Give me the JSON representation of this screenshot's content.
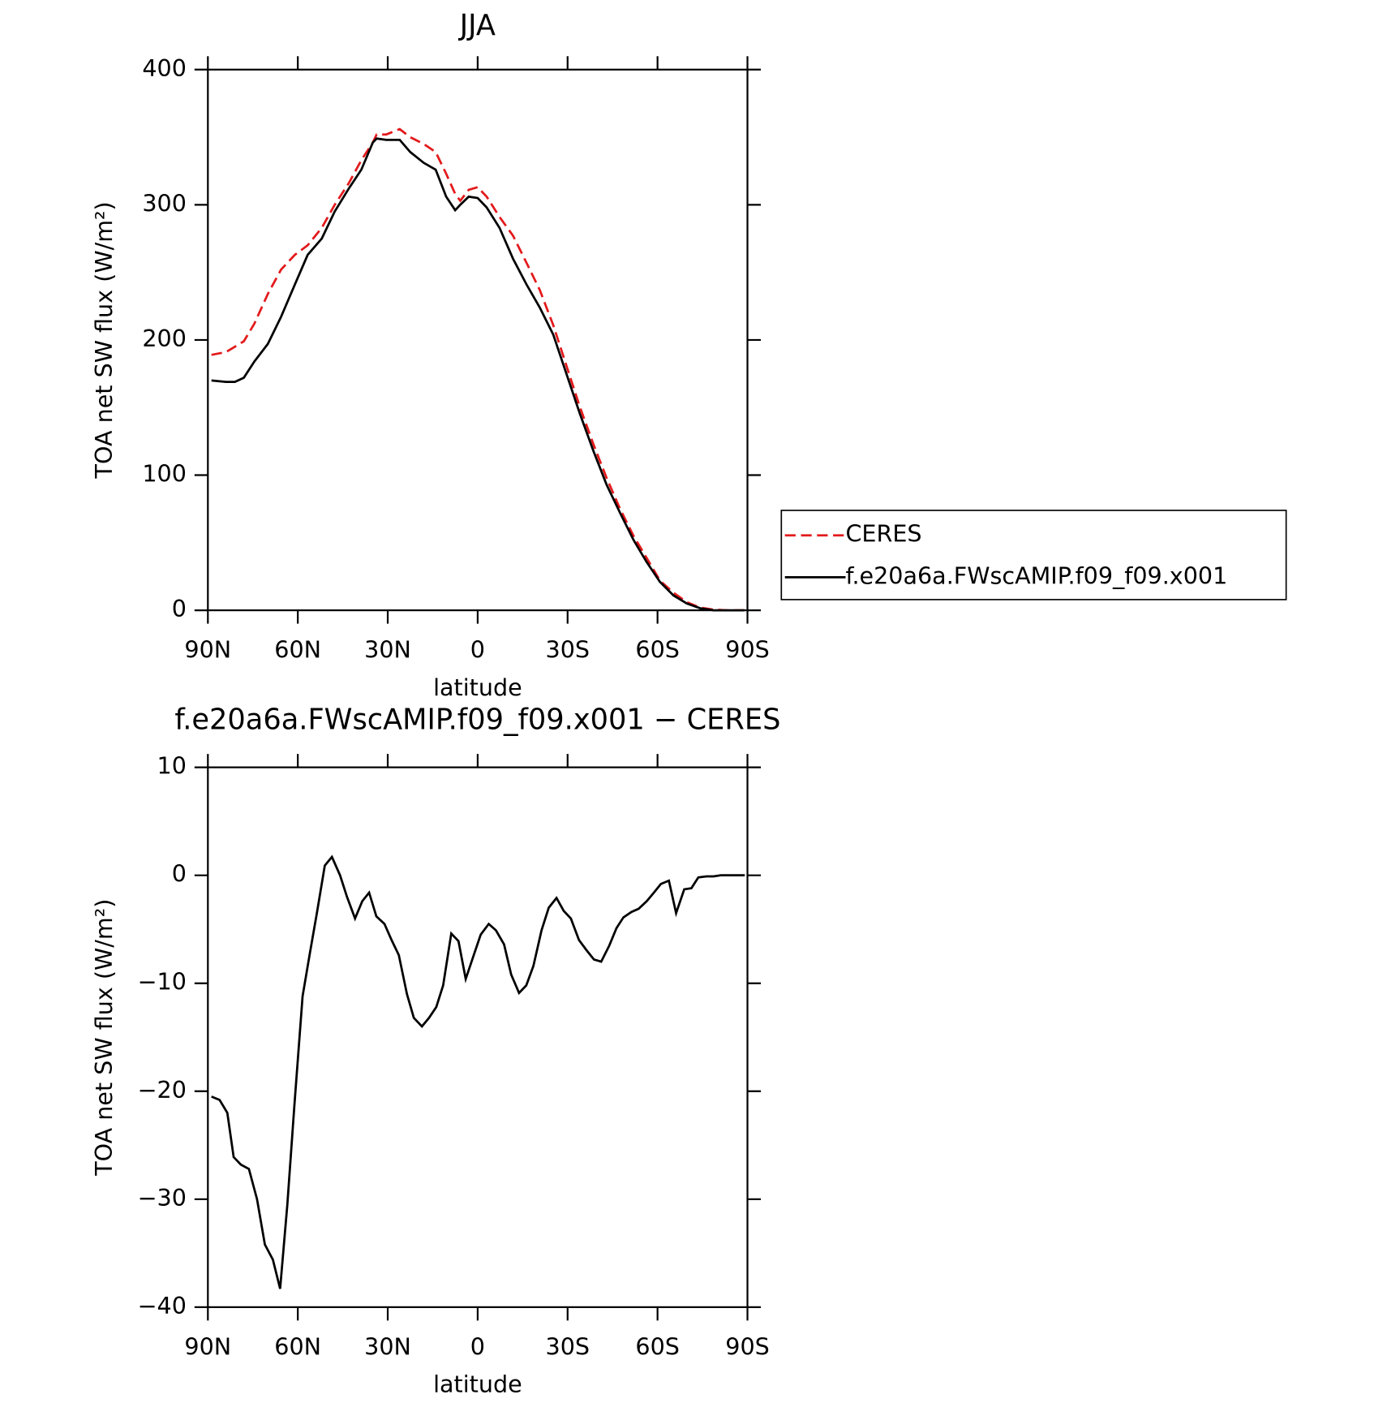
{
  "chart_data": [
    {
      "type": "line",
      "title": "JJA",
      "xlabel": "latitude",
      "ylabel": "TOA net SW flux (W/m²)",
      "x": [
        88.8,
        84,
        81,
        78,
        74.5,
        70,
        65.6,
        61,
        56.7,
        52,
        47.7,
        43,
        38.8,
        35,
        33.7,
        30.5,
        26,
        22.5,
        18,
        14,
        10.5,
        7.5,
        5.8,
        3,
        0,
        -3,
        -7.3,
        -11.8,
        -16.3,
        -20.7,
        -25.2,
        -29.6,
        -34,
        -38.6,
        -43,
        -47.5,
        -52,
        -56.3,
        -60.8,
        -65.3,
        -69.8,
        -74.2,
        -78.7,
        -83,
        -89
      ],
      "series": [
        {
          "name": "CERES",
          "color": "#e31a1c",
          "dash": true,
          "values": [
            189,
            191,
            195,
            199,
            212,
            234,
            252,
            263,
            270,
            283,
            300,
            316,
            333,
            346,
            352,
            352,
            356,
            350,
            345,
            339,
            323,
            308,
            303,
            311,
            313,
            306,
            291,
            277,
            257,
            237,
            211,
            181,
            151,
            123,
            98,
            75,
            55,
            39,
            22,
            13,
            6,
            2,
            0.5,
            0,
            0
          ]
        },
        {
          "name": "f.e20a6a.FWscAMIP.f09_f09.x001",
          "color": "#000000",
          "dash": false,
          "values": [
            170,
            169,
            169,
            172,
            184,
            197,
            217,
            241,
            263,
            275,
            295,
            312,
            326,
            346,
            349,
            348,
            348,
            339,
            331,
            326,
            306,
            296,
            300,
            306,
            305,
            298,
            283,
            260,
            241,
            224,
            204,
            175,
            146,
            118,
            93,
            72,
            52,
            36,
            21,
            11,
            5,
            1.5,
            0,
            0,
            0
          ]
        }
      ],
      "xlim": [
        90,
        -90
      ],
      "xticks": [
        {
          "value": 90,
          "label": "90N"
        },
        {
          "value": 60,
          "label": "60N"
        },
        {
          "value": 30,
          "label": "30N"
        },
        0,
        {
          "value": -30,
          "label": "30S"
        },
        {
          "value": -60,
          "label": "60S"
        },
        {
          "value": -90,
          "label": "90S"
        }
      ],
      "ylim": [
        0,
        400
      ],
      "yticks": [
        0,
        100,
        200,
        300,
        400
      ],
      "legend": "right"
    },
    {
      "type": "line",
      "title": "f.e20a6a.FWscAMIP.f09_f09.x001 − CERES",
      "xlabel": "latitude",
      "ylabel": "TOA net SW flux (W/m²)",
      "x": [
        88.8,
        86.1,
        83.5,
        81.4,
        79.0,
        76.3,
        73.6,
        71.0,
        68.3,
        65.9,
        63.5,
        61.1,
        58.4,
        55.9,
        53.7,
        51.0,
        48.6,
        45.9,
        43.6,
        40.9,
        38.5,
        36.2,
        33.8,
        31.1,
        28.7,
        26.3,
        23.6,
        21.3,
        18.6,
        16.2,
        13.8,
        11.5,
        8.8,
        6.4,
        4.0,
        1.3,
        -1,
        -3.7,
        -6.1,
        -8.8,
        -11.2,
        -13.8,
        -16.2,
        -18.6,
        -21.3,
        -23.7,
        -26.3,
        -28.7,
        -31.1,
        -33.8,
        -36.2,
        -38.8,
        -41.2,
        -43.9,
        -46.3,
        -48.6,
        -51.3,
        -53.7,
        -56.4,
        -58.8,
        -61.1,
        -63.8,
        -66.2,
        -68.9,
        -71.3,
        -73.6,
        -76.3,
        -78.7,
        -81.1,
        -83.8,
        -86.4,
        -89.1
      ],
      "values": [
        -20.5,
        -20.8,
        -22,
        -26.1,
        -26.8,
        -27.2,
        -30,
        -34.2,
        -35.6,
        -38.3,
        -30.5,
        -21.2,
        -11.2,
        -7.1,
        -3.6,
        0.9,
        1.7,
        0,
        -2,
        -4,
        -2.4,
        -1.6,
        -3.8,
        -4.5,
        -6,
        -7.4,
        -11,
        -13.2,
        -14,
        -13.2,
        -12.2,
        -10.2,
        -5.4,
        -6.1,
        -9.6,
        -7.4,
        -5.5,
        -4.5,
        -5.1,
        -6.4,
        -9.2,
        -10.9,
        -10.2,
        -8.4,
        -5.1,
        -3,
        -2.1,
        -3.3,
        -4,
        -6,
        -6.9,
        -7.8,
        -8,
        -6.5,
        -4.9,
        -3.9,
        -3.4,
        -3.1,
        -2.4,
        -1.6,
        -0.8,
        -0.5,
        -3.5,
        -1.3,
        -1.2,
        -0.2,
        -0.1,
        -0.1,
        0,
        0,
        0,
        0
      ],
      "color": "#000000",
      "xlim": [
        90,
        -90
      ],
      "xticks": [
        {
          "value": 90,
          "label": "90N"
        },
        {
          "value": 60,
          "label": "60N"
        },
        {
          "value": 30,
          "label": "30N"
        },
        0,
        {
          "value": -30,
          "label": "30S"
        },
        {
          "value": -60,
          "label": "60S"
        },
        {
          "value": -90,
          "label": "90S"
        }
      ],
      "ylim": [
        -40,
        10
      ],
      "yticks": [
        {
          "value": -40,
          "label": "−40"
        },
        {
          "value": -30,
          "label": "−30"
        },
        {
          "value": -20,
          "label": "−20"
        },
        {
          "value": -10,
          "label": "−10"
        },
        0,
        10
      ]
    }
  ]
}
